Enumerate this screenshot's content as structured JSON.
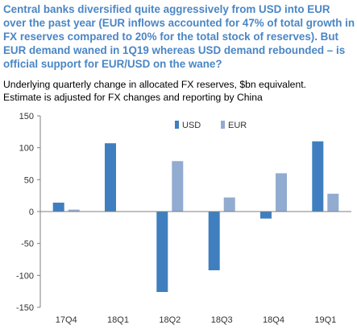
{
  "header": {
    "title": "Central banks diversified quite aggressively from USD into EUR over the past year (EUR inflows accounted for 47% of total growth in FX reserves compared to 20% for the total stock of reserves).  But EUR demand waned in 1Q19 whereas USD demand rebounded – is official support for EUR/USD on the wane?",
    "subtitle_line1": "Underlying quarterly change in allocated FX reserves, $bn equivalent.",
    "subtitle_line2": "Estimate is adjusted for FX changes and reporting by China"
  },
  "colors": {
    "title": "#4a86c5",
    "usd": "#3f7fbf",
    "eur": "#92abd0",
    "axis": "#7f7f7f"
  },
  "chart_data": {
    "type": "bar",
    "categories": [
      "17Q4",
      "18Q1",
      "18Q2",
      "18Q3",
      "18Q4",
      "19Q1"
    ],
    "series": [
      {
        "name": "USD",
        "values": [
          14,
          107,
          -126,
          -92,
          -11,
          110
        ]
      },
      {
        "name": "EUR",
        "values": [
          3,
          0,
          79,
          22,
          60,
          28
        ]
      }
    ],
    "ylim": [
      -150,
      150
    ],
    "yticks": [
      -150,
      -100,
      -50,
      0,
      50,
      100,
      150
    ],
    "ytick_labels": [
      "-150",
      "-100",
      "-50",
      "0",
      "50",
      "100",
      "150"
    ],
    "legend_position": "top-right",
    "grid": false
  }
}
